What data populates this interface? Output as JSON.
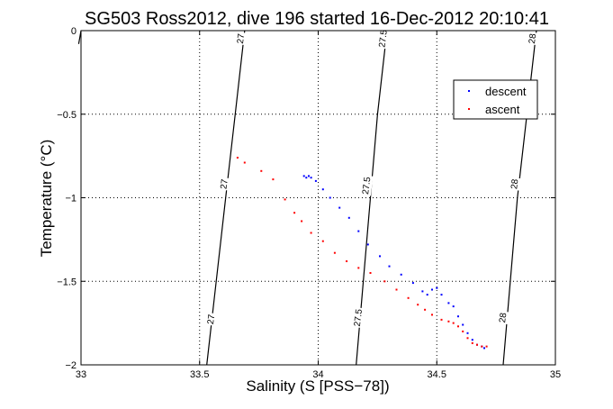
{
  "chart_data": {
    "type": "scatter",
    "title": "SG503 Ross2012, dive 196 started 16-Dec-2012 20:10:41",
    "xlabel": "Salinity (S [PSS−78])",
    "ylabel": "Temperature (°C)",
    "xlim": [
      33,
      35
    ],
    "ylim": [
      -2,
      0
    ],
    "xticks": [
      "33",
      "33.5",
      "34",
      "34.5",
      "35"
    ],
    "yticks": [
      "−2",
      "−1.5",
      "−1",
      "−0.5",
      "0"
    ],
    "grid": true,
    "legend_position": "top-right",
    "colors": {
      "descent": "#0000ff",
      "ascent": "#ff0000",
      "contour": "#000000"
    },
    "series": [
      {
        "name": "descent",
        "points": [
          [
            33.94,
            -0.87
          ],
          [
            33.95,
            -0.88
          ],
          [
            33.96,
            -0.87
          ],
          [
            33.97,
            -0.88
          ],
          [
            33.99,
            -0.9
          ],
          [
            34.02,
            -0.95
          ],
          [
            34.05,
            -1.0
          ],
          [
            34.09,
            -1.06
          ],
          [
            34.13,
            -1.12
          ],
          [
            34.17,
            -1.2
          ],
          [
            34.21,
            -1.28
          ],
          [
            34.26,
            -1.35
          ],
          [
            34.3,
            -1.41
          ],
          [
            34.35,
            -1.46
          ],
          [
            34.4,
            -1.51
          ],
          [
            34.44,
            -1.56
          ],
          [
            34.46,
            -1.58
          ],
          [
            34.48,
            -1.55
          ],
          [
            34.5,
            -1.54
          ],
          [
            34.52,
            -1.58
          ],
          [
            34.55,
            -1.63
          ],
          [
            34.57,
            -1.65
          ],
          [
            34.59,
            -1.71
          ],
          [
            34.61,
            -1.76
          ],
          [
            34.63,
            -1.81
          ],
          [
            34.65,
            -1.85
          ],
          [
            34.67,
            -1.88
          ],
          [
            34.69,
            -1.89
          ],
          [
            34.7,
            -1.9
          ]
        ]
      },
      {
        "name": "ascent",
        "points": [
          [
            33.66,
            -0.76
          ],
          [
            33.69,
            -0.79
          ],
          [
            33.76,
            -0.84
          ],
          [
            33.81,
            -0.89
          ],
          [
            33.86,
            -1.01
          ],
          [
            33.9,
            -1.09
          ],
          [
            33.93,
            -1.14
          ],
          [
            33.97,
            -1.21
          ],
          [
            34.02,
            -1.26
          ],
          [
            34.07,
            -1.33
          ],
          [
            34.12,
            -1.38
          ],
          [
            34.17,
            -1.42
          ],
          [
            34.22,
            -1.45
          ],
          [
            34.28,
            -1.5
          ],
          [
            34.33,
            -1.55
          ],
          [
            34.38,
            -1.6
          ],
          [
            34.42,
            -1.64
          ],
          [
            34.45,
            -1.67
          ],
          [
            34.48,
            -1.7
          ],
          [
            34.52,
            -1.73
          ],
          [
            34.55,
            -1.74
          ],
          [
            34.57,
            -1.75
          ],
          [
            34.59,
            -1.77
          ],
          [
            34.61,
            -1.8
          ],
          [
            34.63,
            -1.84
          ],
          [
            34.65,
            -1.87
          ],
          [
            34.67,
            -1.88
          ],
          [
            34.69,
            -1.89
          ],
          [
            34.71,
            -1.89
          ]
        ]
      }
    ],
    "contours": [
      {
        "label": "27",
        "points": [
          [
            33.53,
            -2
          ],
          [
            33.57,
            -1.5
          ],
          [
            33.61,
            -1
          ],
          [
            33.65,
            -0.5
          ],
          [
            33.69,
            0
          ]
        ]
      },
      {
        "label": "27.5",
        "points": [
          [
            34.16,
            -2
          ],
          [
            34.19,
            -1.5
          ],
          [
            34.22,
            -1
          ],
          [
            34.25,
            -0.5
          ],
          [
            34.29,
            0
          ]
        ]
      },
      {
        "label": "28",
        "points": [
          [
            34.78,
            -2
          ],
          [
            34.81,
            -1.5
          ],
          [
            34.84,
            -1
          ],
          [
            34.88,
            -0.5
          ],
          [
            34.92,
            0
          ]
        ]
      },
      {
        "label": "",
        "points": [
          [
            32.99,
            -0.08
          ],
          [
            33.0,
            0
          ]
        ]
      }
    ],
    "contour_labels": [
      {
        "text": "27",
        "x": 33.685,
        "y": -0.05
      },
      {
        "text": "27",
        "x": 33.615,
        "y": -0.92
      },
      {
        "text": "27",
        "x": 33.56,
        "y": -1.73
      },
      {
        "text": "27.5",
        "x": 34.285,
        "y": -0.05
      },
      {
        "text": "27.5",
        "x": 34.215,
        "y": -0.93
      },
      {
        "text": "27.5",
        "x": 34.18,
        "y": -1.72
      },
      {
        "text": "28",
        "x": 34.915,
        "y": -0.05
      },
      {
        "text": "28",
        "x": 34.84,
        "y": -0.92
      },
      {
        "text": "28",
        "x": 34.79,
        "y": -1.72
      }
    ]
  }
}
